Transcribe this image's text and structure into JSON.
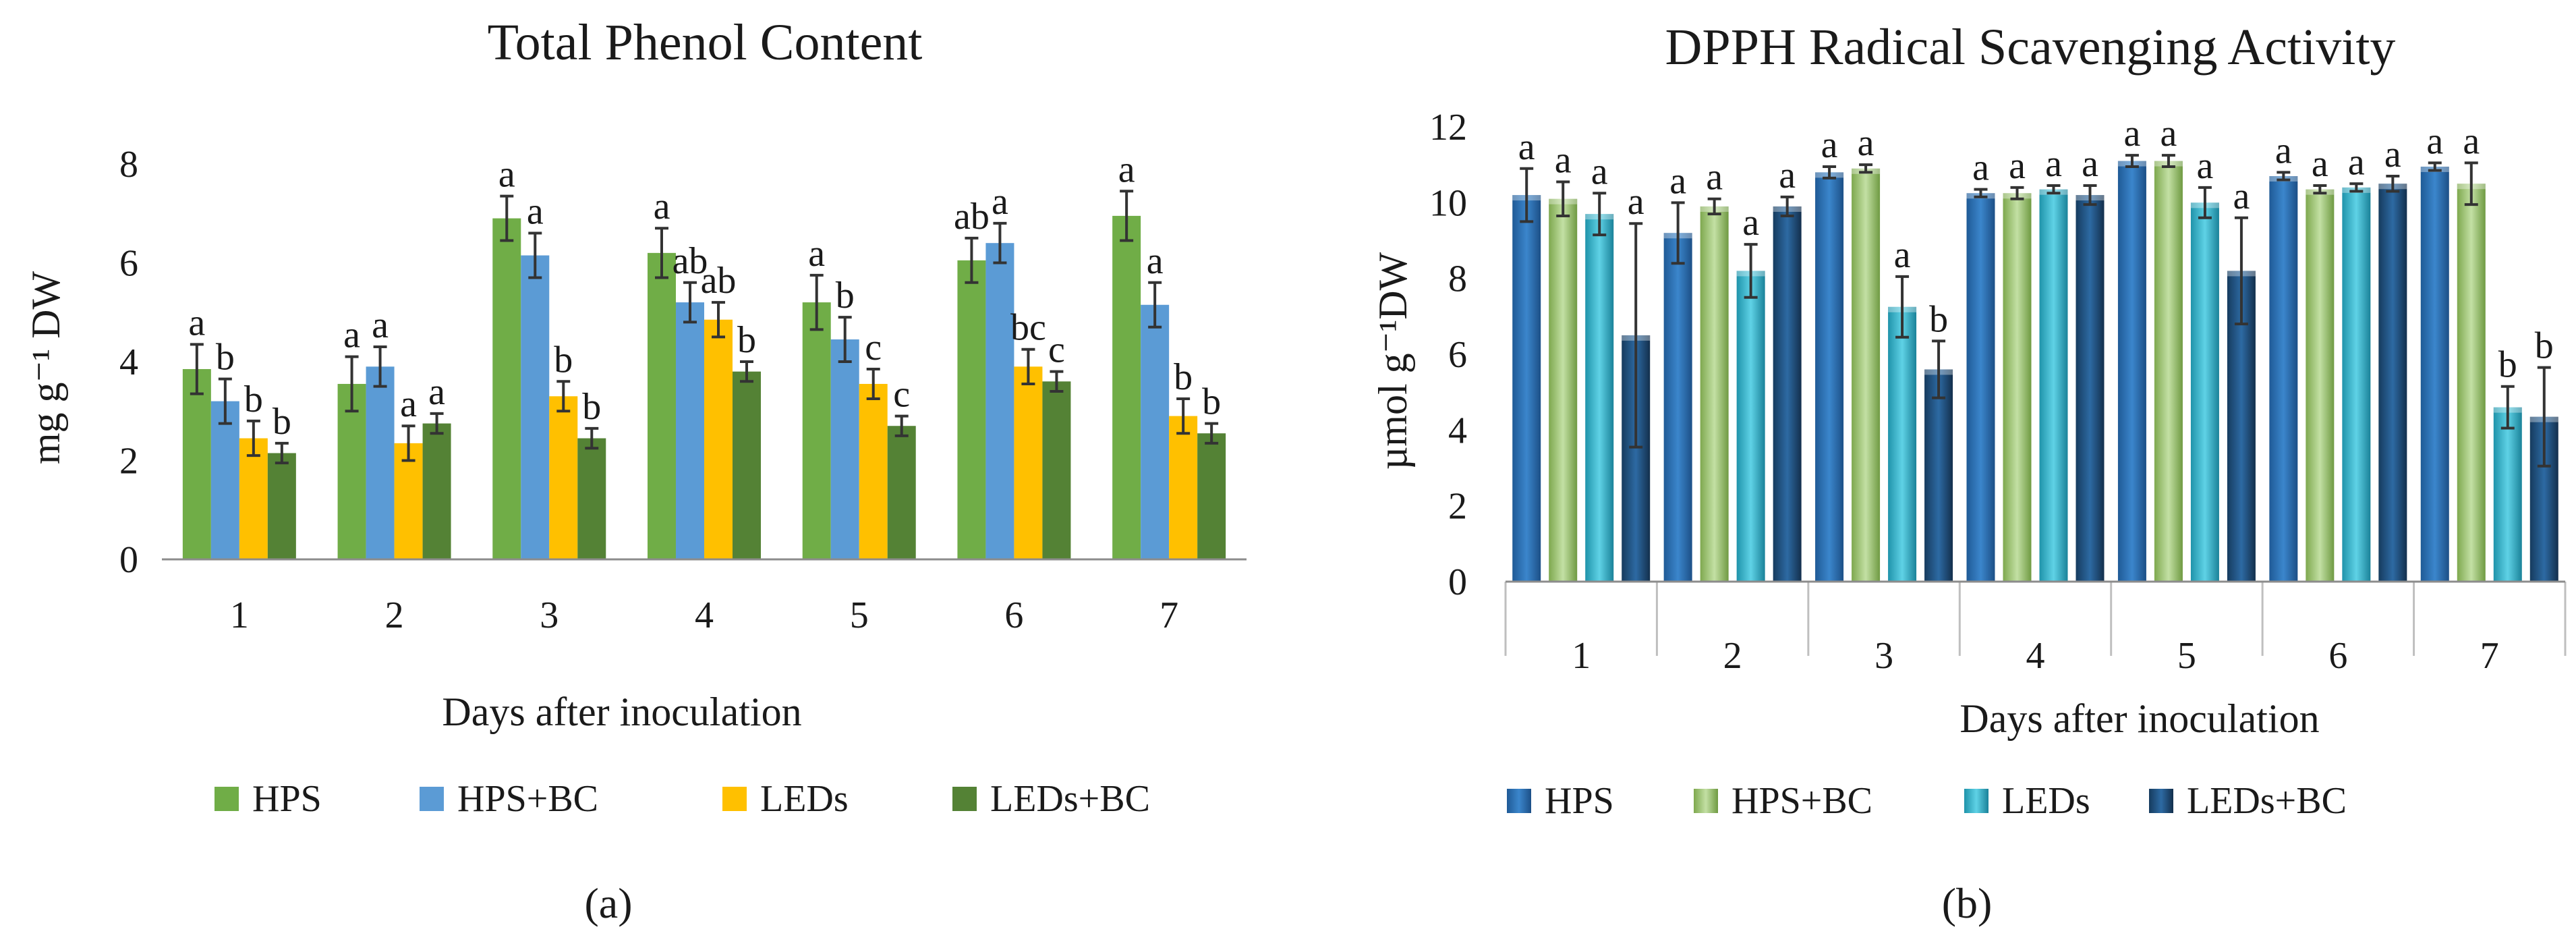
{
  "figure": {
    "panel_labels": [
      "(a)",
      "(b)"
    ]
  },
  "chart_data": [
    {
      "type": "bar",
      "title": "Total Phenol Content",
      "xlabel": "Days after inoculation",
      "ylabel": "mg g⁻¹ DW",
      "ylim": [
        0,
        8
      ],
      "yticks": [
        0,
        2,
        4,
        6,
        8
      ],
      "grid": false,
      "legend_position": "bottom",
      "categories": [
        "1",
        "2",
        "3",
        "4",
        "5",
        "6",
        "7"
      ],
      "series": [
        {
          "name": "HPS",
          "color": "#70ad47",
          "values": [
            3.85,
            3.55,
            6.9,
            6.2,
            5.2,
            6.05,
            6.95
          ],
          "errors": [
            0.5,
            0.55,
            0.45,
            0.5,
            0.55,
            0.45,
            0.5
          ],
          "letters": [
            "a",
            "a",
            "a",
            "a",
            "a",
            "ab",
            "a"
          ]
        },
        {
          "name": "HPS+BC",
          "color": "#5b9bd5",
          "values": [
            3.2,
            3.9,
            6.15,
            5.2,
            4.45,
            6.4,
            5.15
          ],
          "errors": [
            0.45,
            0.4,
            0.45,
            0.4,
            0.45,
            0.4,
            0.45
          ],
          "letters": [
            "b",
            "a",
            "a",
            "ab",
            "b",
            "a",
            "a"
          ]
        },
        {
          "name": "LEDs",
          "color": "#ffc000",
          "values": [
            2.45,
            2.35,
            3.3,
            4.85,
            3.55,
            3.9,
            2.9
          ],
          "errors": [
            0.35,
            0.35,
            0.3,
            0.35,
            0.3,
            0.35,
            0.35
          ],
          "letters": [
            "b",
            "a",
            "b",
            "ab",
            "c",
            "bc",
            "b"
          ]
        },
        {
          "name": "LEDs+BC",
          "color": "#548235",
          "values": [
            2.15,
            2.75,
            2.45,
            3.8,
            2.7,
            3.6,
            2.55
          ],
          "errors": [
            0.2,
            0.2,
            0.2,
            0.2,
            0.2,
            0.2,
            0.2
          ],
          "letters": [
            "b",
            "a",
            "b",
            "b",
            "c",
            "c",
            "b"
          ]
        }
      ]
    },
    {
      "type": "bar",
      "title": "DPPH Radical Scavenging Activity",
      "xlabel": "Days after inoculation",
      "ylabel": "µmol g⁻¹DW",
      "ylim": [
        0,
        12
      ],
      "yticks": [
        0,
        2,
        4,
        6,
        8,
        10,
        12
      ],
      "grid": false,
      "legend_position": "bottom",
      "categories": [
        "1",
        "2",
        "3",
        "4",
        "5",
        "6",
        "7"
      ],
      "series": [
        {
          "name": "HPS",
          "color": "#2e75b6",
          "values": [
            10.2,
            9.2,
            10.8,
            10.25,
            11.1,
            10.7,
            10.95
          ],
          "errors": [
            0.7,
            0.8,
            0.15,
            0.1,
            0.15,
            0.1,
            0.1
          ],
          "letters": [
            "a",
            "a",
            "a",
            "a",
            "a",
            "a",
            "a"
          ]
        },
        {
          "name": "HPS+BC",
          "color": "#a9d18e",
          "values": [
            10.1,
            9.9,
            10.9,
            10.25,
            11.1,
            10.35,
            10.5
          ],
          "errors": [
            0.45,
            0.2,
            0.1,
            0.15,
            0.15,
            0.1,
            0.55
          ],
          "letters": [
            "a",
            "a",
            "a",
            "a",
            "a",
            "a",
            "a"
          ]
        },
        {
          "name": "LEDs",
          "color": "#2eb5cc",
          "values": [
            9.7,
            8.2,
            7.25,
            10.35,
            10.0,
            10.4,
            4.6
          ],
          "errors": [
            0.55,
            0.7,
            0.8,
            0.1,
            0.4,
            0.1,
            0.55
          ],
          "letters": [
            "a",
            "a",
            "a",
            "a",
            "a",
            "a",
            "b"
          ]
        },
        {
          "name": "LEDs+BC",
          "color": "#1f4e79",
          "values": [
            6.5,
            9.9,
            5.6,
            10.2,
            8.2,
            10.5,
            4.35
          ],
          "errors": [
            2.95,
            0.25,
            0.75,
            0.25,
            1.4,
            0.2,
            1.3
          ],
          "letters": [
            "a",
            "a",
            "b",
            "a",
            "a",
            "a",
            "b"
          ]
        }
      ]
    }
  ]
}
